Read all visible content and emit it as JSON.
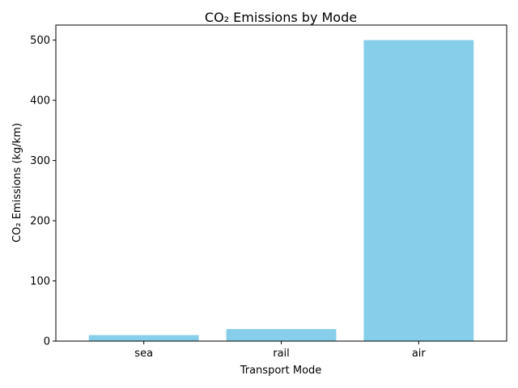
{
  "chart_data": {
    "type": "bar",
    "title": "CO₂ Emissions by Mode",
    "xlabel": "Transport Mode",
    "ylabel": "CO₂ Emissions (kg/km)",
    "categories": [
      "sea",
      "rail",
      "air"
    ],
    "values": [
      10,
      20,
      500
    ],
    "ylim": [
      0,
      525
    ],
    "yticks": [
      0,
      100,
      200,
      300,
      400,
      500
    ],
    "grid": false,
    "bar_color": "#87CEEB"
  }
}
